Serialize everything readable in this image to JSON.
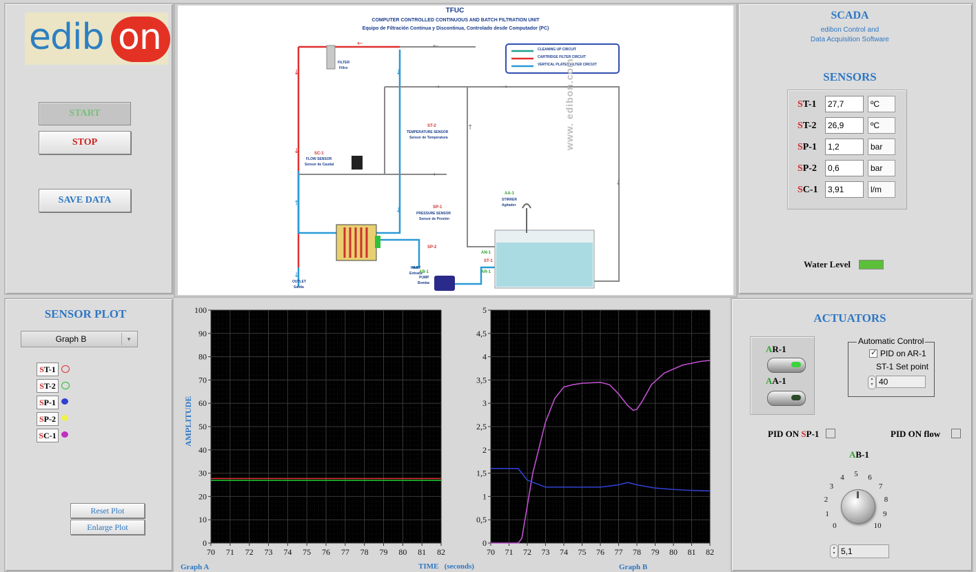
{
  "logo": {
    "left": "edib",
    "right": "on"
  },
  "controls": {
    "start": "START",
    "stop": "STOP",
    "save": "SAVE DATA"
  },
  "diagram": {
    "code": "TFUC",
    "title_en": "COMPUTER CONTROLLED CONTINUOUS AND BATCH FILTRATION UNIT",
    "title_es": "Equipo de Filtración Continua y Discontinua, Controlado desde Computador (PC)",
    "legend": [
      "CLEANING UP CIRCUIT",
      "CARTRIDGE FILTER CIRCUIT",
      "VERTICAL PLATES FILTER CIRCUIT"
    ],
    "filter_label": "FILTER",
    "filter_label_es": "Filtro",
    "st2_tag": "ST-2",
    "st2_label": "TEMPERATURE SENSOR",
    "st2_label_es": "Sensor de Temperatura",
    "sc1_tag": "SC-1",
    "sc1_label": "FLOW SENSOR",
    "sc1_label_es": "Sensor de Caudal",
    "sp1_tag": "SP-1",
    "sp1_label": "PRESSURE SENSOR",
    "sp1_label_es": "Sensor de Presión",
    "sp2_tag": "SP-2",
    "aa1_tag": "AA-1",
    "aa1_label": "STIRRER",
    "aa1_label_es": "Agitador",
    "inlet": "INLET",
    "inlet_es": "Entrada",
    "outlet": "OUTLET",
    "outlet_es": "Salida",
    "ab1_tag": "AB-1",
    "pump": "PUMP",
    "pump_es": "Bomba",
    "an1_tag": "AN-1",
    "st1_tag": "ST-1",
    "ar1_tag": "AR-1",
    "url": "www. edibon.com"
  },
  "scada": {
    "title": "SCADA",
    "sub1": "edibon Control and",
    "sub2": "Data Acquisition Software"
  },
  "sensors": {
    "title": "SENSORS",
    "rows": [
      {
        "hl": "S",
        "rest": "T-1",
        "value": "27,7",
        "unit": "ºC"
      },
      {
        "hl": "S",
        "rest": "T-2",
        "value": "26,9",
        "unit": "ºC"
      },
      {
        "hl": "S",
        "rest": "P-1",
        "value": "1,2",
        "unit": "bar"
      },
      {
        "hl": "S",
        "rest": "P-2",
        "value": "0,6",
        "unit": "bar"
      },
      {
        "hl": "S",
        "rest": "C-1",
        "value": "3,91",
        "unit": "l/m"
      }
    ],
    "water_level_label": "Water Level",
    "water_level_color": "#5bbf3a"
  },
  "sensor_plot": {
    "title": "SENSOR PLOT",
    "selector_value": "Graph B",
    "legend": [
      {
        "hl": "S",
        "rest": "T-1",
        "color": "#e03030",
        "style": "ring"
      },
      {
        "hl": "S",
        "rest": "T-2",
        "color": "#20c030",
        "style": "ring"
      },
      {
        "hl": "S",
        "rest": "P-1",
        "color": "#3040d0",
        "style": "fill"
      },
      {
        "hl": "S",
        "rest": "P-2",
        "color": "#f0f050",
        "style": "fill"
      },
      {
        "hl": "S",
        "rest": "C-1",
        "color": "#c030c0",
        "style": "fill"
      }
    ],
    "reset": "Reset Plot",
    "enlarge": "Enlarge Plot"
  },
  "actuators": {
    "title": "ACTUATORS",
    "ar1_hl": "A",
    "ar1_rest": "R-1",
    "aa1_hl": "A",
    "aa1_rest": "A-1",
    "auto_group": "Automatic Control",
    "pid_ar1": "PID on AR-1",
    "setpoint_label": "ST-1 Set point",
    "setpoint_value": "40",
    "pid_sp1_pre": "PID ON ",
    "pid_sp1_hl": "S",
    "pid_sp1_post": "P-1",
    "pid_flow": "PID ON flow",
    "knob_hl": "A",
    "knob_rest": "B-1",
    "knob_ticks": [
      "0",
      "1",
      "2",
      "3",
      "4",
      "5",
      "6",
      "7",
      "8",
      "9",
      "10"
    ],
    "knob_value": "5,1",
    "colors": {
      "hl": "#2fa02f",
      "led_on": "#3cd23c"
    }
  },
  "chart_data": [
    {
      "type": "line",
      "name": "Graph A",
      "ylabel": "AMPLITUDE",
      "xlabel": "TIME   (seconds)",
      "xlim": [
        70,
        82
      ],
      "ylim": [
        0,
        100
      ],
      "xticks": [
        "70",
        "71",
        "72",
        "73",
        "74",
        "75",
        "76",
        "77",
        "78",
        "79",
        "80",
        "81",
        "82"
      ],
      "yticks": [
        "0",
        "10",
        "20",
        "30",
        "40",
        "50",
        "60",
        "70",
        "80",
        "90",
        "100"
      ],
      "series": [
        {
          "name": "ST-1",
          "color": "#e03030",
          "x": [
            70,
            82
          ],
          "y": [
            27.7,
            27.7
          ]
        },
        {
          "name": "ST-2",
          "color": "#20c030",
          "x": [
            70,
            82
          ],
          "y": [
            26.9,
            26.9
          ]
        }
      ]
    },
    {
      "type": "line",
      "name": "Graph B",
      "xlim": [
        70,
        82
      ],
      "ylim": [
        0,
        5
      ],
      "xticks": [
        "70",
        "71",
        "72",
        "73",
        "74",
        "75",
        "76",
        "77",
        "78",
        "79",
        "80",
        "81",
        "82"
      ],
      "yticks": [
        "0",
        "0,5",
        "1",
        "1,5",
        "2",
        "2,5",
        "3",
        "3,5",
        "4",
        "4,5",
        "5"
      ],
      "series": [
        {
          "name": "SC-1",
          "color": "#c050d0",
          "x": [
            70,
            71.5,
            71.7,
            72.3,
            73,
            73.5,
            74,
            74.5,
            75,
            76,
            76.5,
            77,
            77.5,
            77.8,
            78,
            78.3,
            78.8,
            79.5,
            80.5,
            81.5,
            82
          ],
          "y": [
            0,
            0,
            0.1,
            1.5,
            2.6,
            3.1,
            3.35,
            3.4,
            3.43,
            3.45,
            3.4,
            3.2,
            2.95,
            2.85,
            2.87,
            3.05,
            3.4,
            3.65,
            3.82,
            3.9,
            3.92
          ]
        },
        {
          "name": "SP-1",
          "color": "#3040d0",
          "x": [
            70,
            71,
            71.5,
            72,
            73,
            74,
            75,
            76,
            77,
            77.5,
            78,
            79,
            80,
            81,
            82
          ],
          "y": [
            1.6,
            1.6,
            1.6,
            1.35,
            1.2,
            1.2,
            1.2,
            1.2,
            1.25,
            1.3,
            1.25,
            1.18,
            1.15,
            1.13,
            1.12
          ]
        }
      ]
    }
  ]
}
